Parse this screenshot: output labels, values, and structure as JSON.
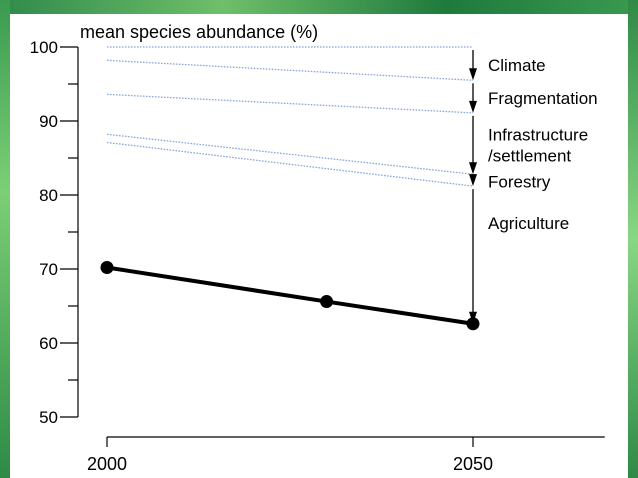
{
  "chart_data": {
    "type": "line",
    "ylabel": "mean species abundance (%)",
    "xlabel": "",
    "xlim": [
      1998,
      2068
    ],
    "ylim": [
      50,
      100
    ],
    "x_ticks": [
      2000,
      2050
    ],
    "y_ticks": [
      50,
      60,
      70,
      80,
      90,
      100
    ],
    "y_minor_step": 5,
    "grid": false,
    "series": [
      {
        "style": "solid",
        "color": "#000000",
        "x": [
          2000,
          2030,
          2050
        ],
        "y": [
          70.2,
          65.6,
          62.6
        ],
        "markers": true
      },
      {
        "style": "dotted",
        "color": "#8aa6d8",
        "x": [
          2000,
          2050
        ],
        "y": [
          100,
          100
        ]
      },
      {
        "style": "dotted",
        "color": "#8aa6d8",
        "x": [
          2000,
          2050
        ],
        "y": [
          98.2,
          95.5
        ]
      },
      {
        "style": "dotted",
        "color": "#8aa6d8",
        "x": [
          2000,
          2050
        ],
        "y": [
          93.6,
          91.1
        ]
      },
      {
        "style": "dotted",
        "color": "#8aa6d8",
        "x": [
          2000,
          2050
        ],
        "y": [
          88.2,
          82.8
        ]
      },
      {
        "style": "dotted",
        "color": "#8aa6d8",
        "x": [
          2000,
          2050
        ],
        "y": [
          87.1,
          81.2
        ]
      }
    ],
    "annotations": [
      {
        "lines": [
          "Climate"
        ],
        "y_from": 100,
        "y_to": 95.5
      },
      {
        "lines": [
          "Fragmentation"
        ],
        "y_from": 95.5,
        "y_to": 91.1
      },
      {
        "lines": [
          "Infrastructure",
          "/settlement"
        ],
        "y_from": 91.1,
        "y_to": 82.8
      },
      {
        "lines": [
          "Forestry"
        ],
        "y_from": 82.8,
        "y_to": 81.2
      },
      {
        "lines": [
          "Agriculture"
        ],
        "y_from": 81.2,
        "y_to": 62.6
      }
    ]
  },
  "colors": {
    "frame": "#2f8a4a",
    "axis": "#000000",
    "baseline": "#8aa6d8"
  }
}
